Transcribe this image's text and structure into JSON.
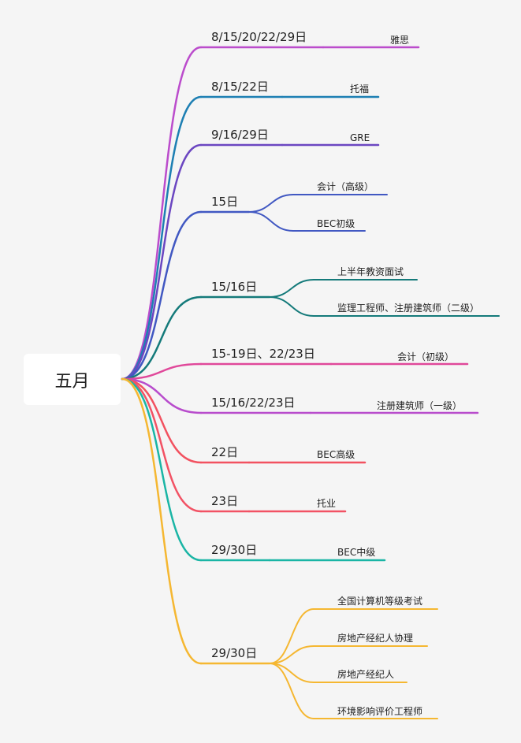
{
  "root": {
    "label": "五月"
  },
  "branches": [
    {
      "date": "8/15/20/22/29日",
      "color": "#bb4ccc",
      "leaves": [
        "雅思"
      ]
    },
    {
      "date": "8/15/22日",
      "color": "#1d7fb3",
      "leaves": [
        "托福"
      ]
    },
    {
      "date": "9/16/29日",
      "color": "#6b46c1",
      "leaves": [
        "GRE"
      ]
    },
    {
      "date": "15日",
      "color": "#4158c2",
      "leaves": [
        "会计（高级）",
        "BEC初级"
      ]
    },
    {
      "date": "15/16日",
      "color": "#147a7a",
      "leaves": [
        "上半年教资面试",
        "监理工程师、注册建筑师（二级）"
      ]
    },
    {
      "date": "15-19日、22/23日",
      "color": "#e0489a",
      "leaves": [
        "会计（初级）"
      ]
    },
    {
      "date": "15/16/22/23日",
      "color": "#b84ccc",
      "leaves": [
        "注册建筑师（一级）"
      ]
    },
    {
      "date": "22日",
      "color": "#f25260",
      "leaves": [
        "BEC高级"
      ]
    },
    {
      "date": "23日",
      "color": "#f25264",
      "leaves": [
        "托业"
      ]
    },
    {
      "date": "29/30日",
      "color": "#1ab5a5",
      "leaves": [
        "BEC中级"
      ]
    },
    {
      "date": "29/30日",
      "color": "#f5b731",
      "leaves": [
        "全国计算机等级考试",
        "房地产经纪人协理",
        "房地产经纪人",
        "环境影响评价工程师"
      ]
    }
  ]
}
